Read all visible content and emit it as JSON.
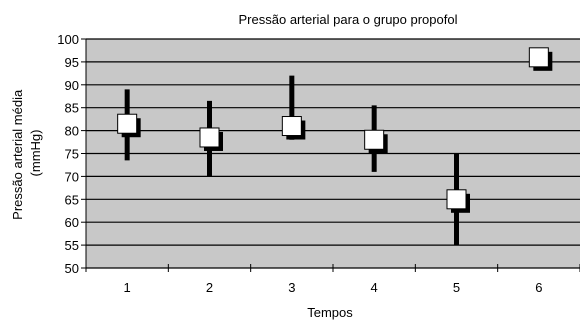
{
  "chart_data": {
    "type": "scatter",
    "title": "Pressão arterial para o grupo propofol",
    "xlabel": "Tempos",
    "ylabel_lines": [
      "Pressão arterial média",
      "(mmHg)"
    ],
    "categories": [
      "1",
      "2",
      "3",
      "4",
      "5",
      "6"
    ],
    "ylim": [
      50,
      100
    ],
    "yticks": [
      50,
      55,
      60,
      65,
      70,
      75,
      80,
      85,
      90,
      95,
      100
    ],
    "grid": true,
    "series": [
      {
        "mean": [
          81.5,
          78.5,
          81.0,
          78.0,
          65.0,
          96.0
        ],
        "low": [
          73.5,
          70.0,
          78.0,
          71.0,
          55.0,
          96.0
        ],
        "high": [
          89.0,
          86.5,
          92.0,
          85.5,
          75.0,
          96.0
        ]
      }
    ],
    "colors": {
      "plot_bg": "#c8c8c8",
      "grid": "#000000",
      "marker_fill": "#ffffff",
      "error_bar": "#000000"
    }
  }
}
